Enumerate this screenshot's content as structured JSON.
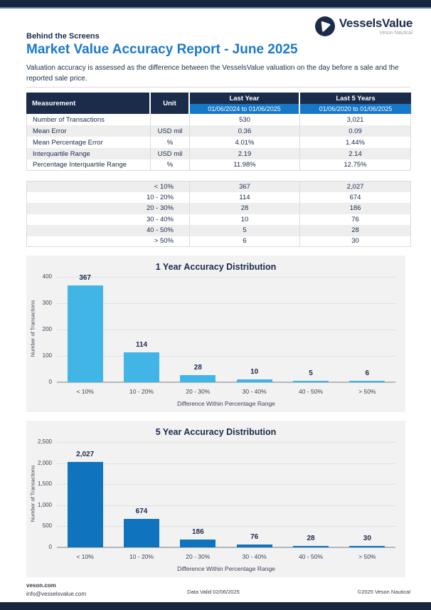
{
  "colors": {
    "navy": "#1b2b4a",
    "accent_blue": "#1b7ac9",
    "date_row_blue": "#1778c8",
    "chart1_bar": "#41b6e6",
    "chart2_bar": "#0f74bd"
  },
  "logo": {
    "brand": "VesselsValue",
    "sub_brand": "Veson Nautical"
  },
  "header": {
    "eyebrow": "Behind the Screens",
    "title": "Market Value Accuracy Report - June 2025",
    "intro": "Valuation accuracy is assessed as the difference between the VesselsValue valuation on the day before a sale and the reported sale price."
  },
  "measurement_table": {
    "col_headers": {
      "measurement": "Measurement",
      "unit": "Unit",
      "last_year": "Last Year",
      "last_year_dates": "01/06/2024 to 01/06/2025",
      "last_5_years": "Last 5 Years",
      "last_5_years_dates": "01/06/2020 to 01/06/2025"
    },
    "rows": [
      {
        "measurement": "Number of Transactions",
        "unit": "",
        "last_year": "530",
        "last_5_years": "3,021"
      },
      {
        "measurement": "Mean Error",
        "unit": "USD mil",
        "last_year": "0.36",
        "last_5_years": "0.09"
      },
      {
        "measurement": "Mean Percentage Error",
        "unit": "%",
        "last_year": "4.01%",
        "last_5_years": "1.44%"
      },
      {
        "measurement": "Interquartile Range",
        "unit": "USD mil",
        "last_year": "2.19",
        "last_5_years": "2.14"
      },
      {
        "measurement": "Percentage Interquartile Range",
        "unit": "%",
        "last_year": "11.98%",
        "last_5_years": "12.75%"
      }
    ]
  },
  "distribution_table": {
    "rows": [
      {
        "range": "< 10%",
        "last_year": "367",
        "last_5_years": "2,027"
      },
      {
        "range": "10 - 20%",
        "last_year": "114",
        "last_5_years": "674"
      },
      {
        "range": "20 - 30%",
        "last_year": "28",
        "last_5_years": "186"
      },
      {
        "range": "30 - 40%",
        "last_year": "10",
        "last_5_years": "76"
      },
      {
        "range": "40 - 50%",
        "last_year": "5",
        "last_5_years": "28"
      },
      {
        "range": "> 50%",
        "last_year": "6",
        "last_5_years": "30"
      }
    ]
  },
  "chart_data": [
    {
      "type": "bar",
      "title": "1 Year Accuracy Distribution",
      "categories": [
        "< 10%",
        "10 - 20%",
        "20 - 30%",
        "30 - 40%",
        "40 - 50%",
        "> 50%"
      ],
      "values": [
        367,
        114,
        28,
        10,
        5,
        6
      ],
      "value_labels": [
        "367",
        "114",
        "28",
        "10",
        "5",
        "6"
      ],
      "xlabel": "Difference Within Percentage Range",
      "ylabel": "Number of Transactions",
      "ylim": [
        0,
        400
      ],
      "yticks": [
        0,
        100,
        200,
        300,
        400
      ],
      "ytick_labels": [
        "0",
        "100",
        "200",
        "300",
        "400"
      ],
      "bar_color": "#41b6e6",
      "grid": true,
      "legend": false
    },
    {
      "type": "bar",
      "title": "5 Year Accuracy Distribution",
      "categories": [
        "< 10%",
        "10 - 20%",
        "20 - 30%",
        "30 - 40%",
        "40 - 50%",
        "> 50%"
      ],
      "values": [
        2027,
        674,
        186,
        76,
        28,
        30
      ],
      "value_labels": [
        "2,027",
        "674",
        "186",
        "76",
        "28",
        "30"
      ],
      "xlabel": "Difference Within Percentage Range",
      "ylabel": "Number of Transactions",
      "ylim": [
        0,
        2500
      ],
      "yticks": [
        0,
        500,
        1000,
        1500,
        2000,
        2500
      ],
      "ytick_labels": [
        "0",
        "500",
        "1,000",
        "1,500",
        "2,000",
        "2,500"
      ],
      "bar_color": "#0f74bd",
      "grid": true,
      "legend": false
    }
  ],
  "footer": {
    "website": "veson.com",
    "email": "info@vesselsvalue.com",
    "data_valid": "Data Valid 02/06/2025",
    "copyright": "©2025 Veson Nautical"
  }
}
